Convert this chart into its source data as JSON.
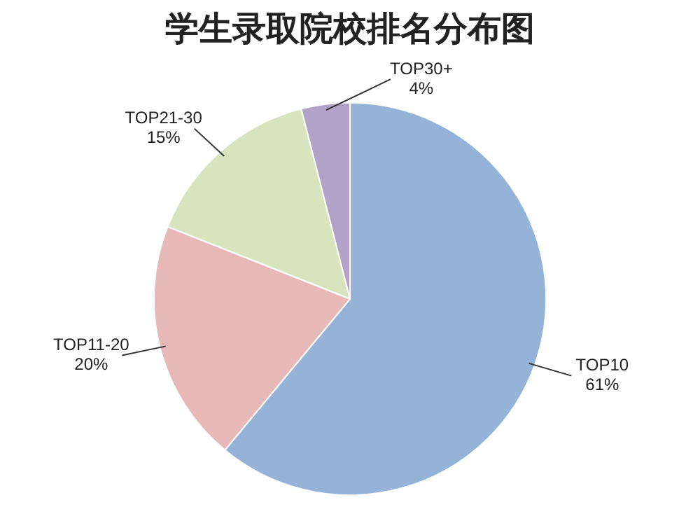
{
  "chart_data": {
    "type": "pie",
    "title": "学生录取院校排名分布图",
    "categories": [
      "TOP10",
      "TOP11-20",
      "TOP21-30",
      "TOP30+"
    ],
    "values": [
      61,
      20,
      15,
      4
    ],
    "value_labels": [
      "61%",
      "20%",
      "15%",
      "4%"
    ],
    "colors": [
      "#95b3d7",
      "#e6b9b8",
      "#d7e4bd",
      "#b3a2c7"
    ],
    "legend": false
  }
}
